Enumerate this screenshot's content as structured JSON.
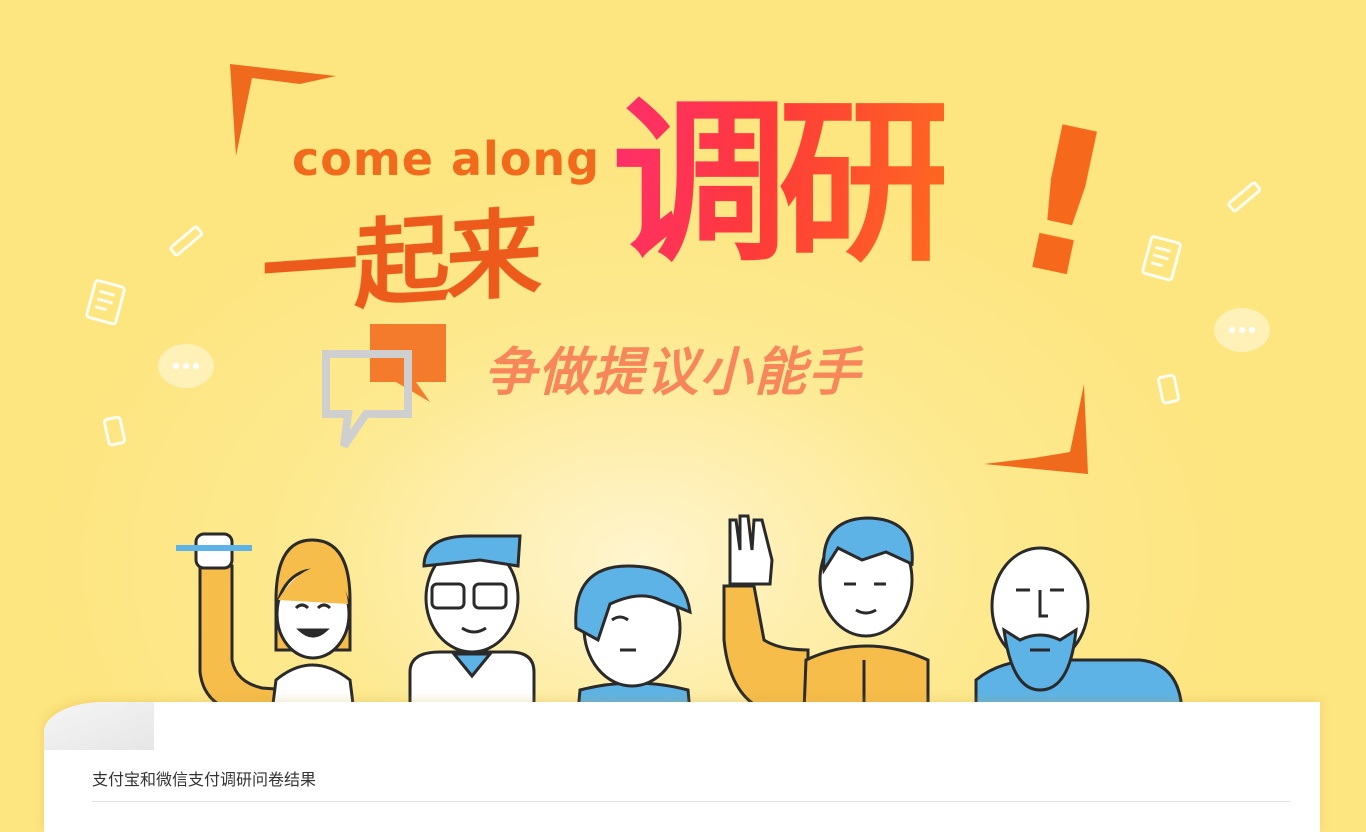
{
  "banner": {
    "headline_en": "come along",
    "headline_zh": "一起来",
    "headline_main": "调研",
    "exclaim": "!",
    "subtitle": "争做提议小能手"
  },
  "card": {
    "title": "支付宝和微信支付调研问卷结果"
  },
  "colors": {
    "background": "#fde57f",
    "accent_orange": "#f26a1b",
    "accent_pink": "#ff2d6e",
    "character_blue": "#5db3e6",
    "character_yellow": "#f6bd4a"
  },
  "icons": [
    "speech-bubble-icon",
    "document-icon",
    "pencil-icon",
    "phone-icon",
    "chat-dots-icon"
  ]
}
